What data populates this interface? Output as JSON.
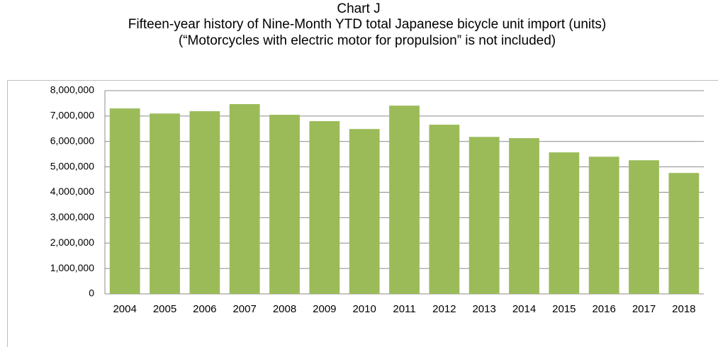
{
  "chart_data": {
    "type": "bar",
    "title": "Chart J",
    "subtitle": "Fifteen-year history of Nine-Month YTD total Japanese bicycle unit import (units)",
    "note": "(“Motorcycles with electric motor for propulsion” is not included)",
    "categories": [
      "2004",
      "2005",
      "2006",
      "2007",
      "2008",
      "2009",
      "2010",
      "2011",
      "2012",
      "2013",
      "2014",
      "2015",
      "2016",
      "2017",
      "2018"
    ],
    "values": [
      7300000,
      7100000,
      7190000,
      7470000,
      7050000,
      6800000,
      6490000,
      7410000,
      6660000,
      6180000,
      6130000,
      5570000,
      5400000,
      5260000,
      4760000
    ],
    "color": "#9bbb59",
    "ylim": [
      0,
      8000000
    ],
    "yticks": [
      0,
      {
        "value": 1000000,
        "label": "1,000,000"
      },
      {
        "value": 2000000,
        "label": "2,000,000"
      },
      {
        "value": 3000000,
        "label": "3,000,000"
      },
      {
        "value": 4000000,
        "label": "4,000,000"
      },
      {
        "value": 5000000,
        "label": "5,000,000"
      },
      {
        "value": 6000000,
        "label": "6,000,000"
      },
      {
        "value": 7000000,
        "label": "7,000,000"
      },
      {
        "value": 8000000,
        "label": "8,000,000"
      }
    ],
    "grid": true
  }
}
